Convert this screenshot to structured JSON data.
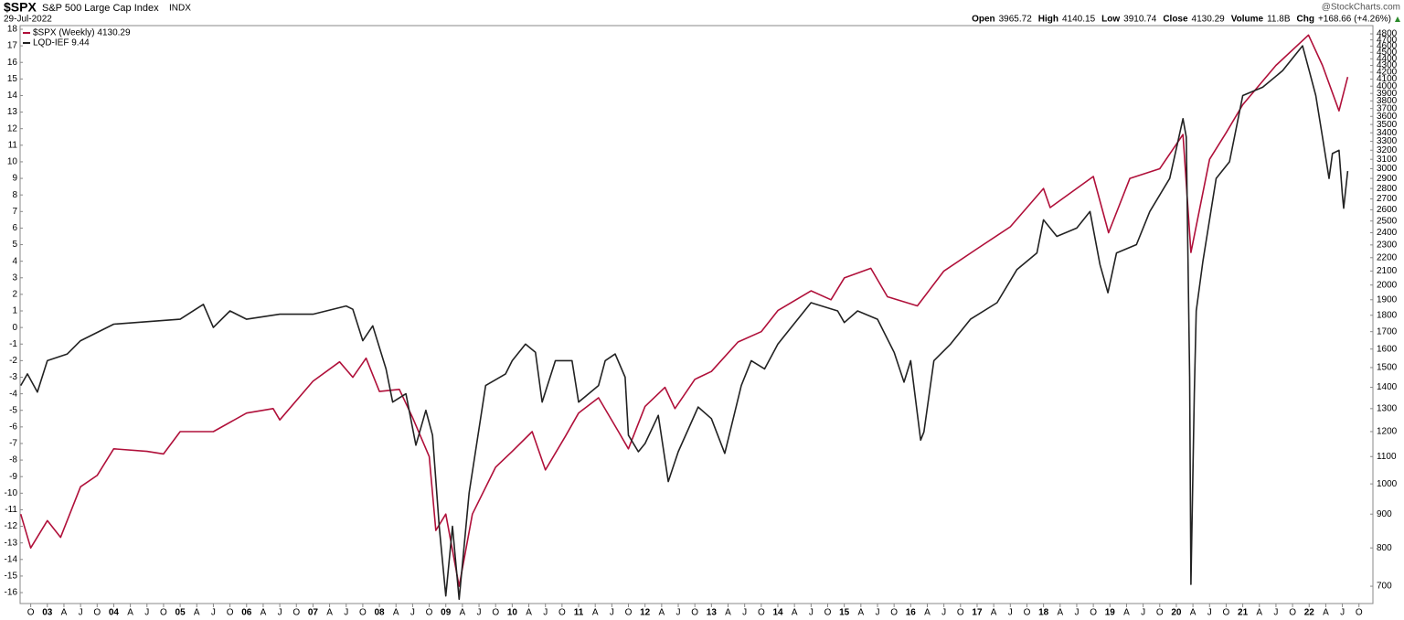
{
  "header": {
    "symbol": "$SPX",
    "name": "S&P 500 Large Cap Index",
    "exchange": "INDX",
    "date": "29-Jul-2022",
    "brand": "@StockCharts.com",
    "stats": [
      {
        "label": "Open",
        "value": "3965.72"
      },
      {
        "label": "High",
        "value": "4140.15"
      },
      {
        "label": "Low",
        "value": "3910.74"
      },
      {
        "label": "Close",
        "value": "4130.29"
      },
      {
        "label": "Volume",
        "value": "11.8B"
      },
      {
        "label": "Chg",
        "value": "+168.66 (+4.26%)"
      }
    ]
  },
  "chart_data": {
    "type": "line",
    "xlim": [
      2002.59,
      2022.96
    ],
    "ylim": [
      -16.66,
      18.22
    ],
    "y2lim": [
      659,
      4940
    ],
    "y2_log": true,
    "yticks": [
      -16,
      -15,
      -14,
      -13,
      -12,
      -11,
      -10,
      -9,
      -8,
      -7,
      -6,
      -5,
      -4,
      -3,
      -2,
      -1,
      0,
      1,
      2,
      3,
      4,
      5,
      6,
      7,
      8,
      9,
      10,
      11,
      12,
      13,
      14,
      15,
      16,
      17,
      18
    ],
    "y2ticks": [
      700,
      800,
      900,
      1000,
      1100,
      1200,
      1300,
      1400,
      1500,
      1600,
      1700,
      1800,
      1900,
      2000,
      2100,
      2200,
      2300,
      2400,
      2500,
      2600,
      2700,
      2800,
      2900,
      3000,
      3100,
      3200,
      3300,
      3400,
      3500,
      3600,
      3700,
      3800,
      3900,
      4000,
      4100,
      4200,
      4300,
      4400,
      4500,
      4600,
      4700,
      4800
    ],
    "xticks": [
      {
        "value": 2002.75,
        "label": "O"
      },
      {
        "value": 2003,
        "label": "03"
      },
      {
        "value": 2003.25,
        "label": "A"
      },
      {
        "value": 2003.5,
        "label": "J"
      },
      {
        "value": 2003.75,
        "label": "O"
      },
      {
        "value": 2004,
        "label": "04"
      },
      {
        "value": 2004.25,
        "label": "A"
      },
      {
        "value": 2004.5,
        "label": "J"
      },
      {
        "value": 2004.75,
        "label": "O"
      },
      {
        "value": 2005,
        "label": "05"
      },
      {
        "value": 2005.25,
        "label": "A"
      },
      {
        "value": 2005.5,
        "label": "J"
      },
      {
        "value": 2005.75,
        "label": "O"
      },
      {
        "value": 2006,
        "label": "06"
      },
      {
        "value": 2006.25,
        "label": "A"
      },
      {
        "value": 2006.5,
        "label": "J"
      },
      {
        "value": 2006.75,
        "label": "O"
      },
      {
        "value": 2007,
        "label": "07"
      },
      {
        "value": 2007.25,
        "label": "A"
      },
      {
        "value": 2007.5,
        "label": "J"
      },
      {
        "value": 2007.75,
        "label": "O"
      },
      {
        "value": 2008,
        "label": "08"
      },
      {
        "value": 2008.25,
        "label": "A"
      },
      {
        "value": 2008.5,
        "label": "J"
      },
      {
        "value": 2008.75,
        "label": "O"
      },
      {
        "value": 2009,
        "label": "09"
      },
      {
        "value": 2009.25,
        "label": "A"
      },
      {
        "value": 2009.5,
        "label": "J"
      },
      {
        "value": 2009.75,
        "label": "O"
      },
      {
        "value": 2010,
        "label": "10"
      },
      {
        "value": 2010.25,
        "label": "A"
      },
      {
        "value": 2010.5,
        "label": "J"
      },
      {
        "value": 2010.75,
        "label": "O"
      },
      {
        "value": 2011,
        "label": "11"
      },
      {
        "value": 2011.25,
        "label": "A"
      },
      {
        "value": 2011.5,
        "label": "J"
      },
      {
        "value": 2011.75,
        "label": "O"
      },
      {
        "value": 2012,
        "label": "12"
      },
      {
        "value": 2012.25,
        "label": "A"
      },
      {
        "value": 2012.5,
        "label": "J"
      },
      {
        "value": 2012.75,
        "label": "O"
      },
      {
        "value": 2013,
        "label": "13"
      },
      {
        "value": 2013.25,
        "label": "A"
      },
      {
        "value": 2013.5,
        "label": "J"
      },
      {
        "value": 2013.75,
        "label": "O"
      },
      {
        "value": 2014,
        "label": "14"
      },
      {
        "value": 2014.25,
        "label": "A"
      },
      {
        "value": 2014.5,
        "label": "J"
      },
      {
        "value": 2014.75,
        "label": "O"
      },
      {
        "value": 2015,
        "label": "15"
      },
      {
        "value": 2015.25,
        "label": "A"
      },
      {
        "value": 2015.5,
        "label": "J"
      },
      {
        "value": 2015.75,
        "label": "O"
      },
      {
        "value": 2016,
        "label": "16"
      },
      {
        "value": 2016.25,
        "label": "A"
      },
      {
        "value": 2016.5,
        "label": "J"
      },
      {
        "value": 2016.75,
        "label": "O"
      },
      {
        "value": 2017,
        "label": "17"
      },
      {
        "value": 2017.25,
        "label": "A"
      },
      {
        "value": 2017.5,
        "label": "J"
      },
      {
        "value": 2017.75,
        "label": "O"
      },
      {
        "value": 2018,
        "label": "18"
      },
      {
        "value": 2018.25,
        "label": "A"
      },
      {
        "value": 2018.5,
        "label": "J"
      },
      {
        "value": 2018.75,
        "label": "O"
      },
      {
        "value": 2019,
        "label": "19"
      },
      {
        "value": 2019.25,
        "label": "A"
      },
      {
        "value": 2019.5,
        "label": "J"
      },
      {
        "value": 2019.75,
        "label": "O"
      },
      {
        "value": 2020,
        "label": "20"
      },
      {
        "value": 2020.25,
        "label": "A"
      },
      {
        "value": 2020.5,
        "label": "J"
      },
      {
        "value": 2020.75,
        "label": "O"
      },
      {
        "value": 2021,
        "label": "21"
      },
      {
        "value": 2021.25,
        "label": "A"
      },
      {
        "value": 2021.5,
        "label": "J"
      },
      {
        "value": 2021.75,
        "label": "O"
      },
      {
        "value": 2022,
        "label": "22"
      },
      {
        "value": 2022.25,
        "label": "A"
      },
      {
        "value": 2022.5,
        "label": "J"
      },
      {
        "value": 2022.75,
        "label": "O"
      }
    ],
    "series": [
      {
        "name": "$SPX (Weekly) 4130.29",
        "color": "#b0103a",
        "axis": "y2",
        "x": [
          2002.6,
          2002.75,
          2003.0,
          2003.2,
          2003.5,
          2003.75,
          2004.0,
          2004.5,
          2004.75,
          2005.0,
          2005.5,
          2006.0,
          2006.4,
          2006.5,
          2007.0,
          2007.4,
          2007.6,
          2007.8,
          2008.0,
          2008.3,
          2008.5,
          2008.75,
          2008.85,
          2009.0,
          2009.2,
          2009.4,
          2009.75,
          2010.0,
          2010.3,
          2010.5,
          2010.8,
          2011.0,
          2011.3,
          2011.6,
          2011.75,
          2012.0,
          2012.3,
          2012.45,
          2012.75,
          2013.0,
          2013.4,
          2013.75,
          2014.0,
          2014.5,
          2014.8,
          2015.0,
          2015.4,
          2015.65,
          2016.1,
          2016.5,
          2017.0,
          2017.5,
          2018.0,
          2018.1,
          2018.75,
          2018.98,
          2019.3,
          2019.75,
          2020.1,
          2020.22,
          2020.5,
          2020.75,
          2021.0,
          2021.5,
          2021.99,
          2022.2,
          2022.45,
          2022.58
        ],
        "values": [
          900,
          800,
          880,
          830,
          990,
          1030,
          1130,
          1120,
          1110,
          1200,
          1200,
          1280,
          1300,
          1250,
          1430,
          1530,
          1450,
          1550,
          1380,
          1390,
          1260,
          1100,
          850,
          900,
          700,
          900,
          1060,
          1120,
          1200,
          1050,
          1180,
          1280,
          1350,
          1200,
          1130,
          1310,
          1400,
          1300,
          1440,
          1480,
          1640,
          1700,
          1830,
          1960,
          1900,
          2050,
          2120,
          1920,
          1860,
          2100,
          2270,
          2450,
          2800,
          2620,
          2920,
          2400,
          2900,
          3000,
          3380,
          2240,
          3100,
          3400,
          3750,
          4300,
          4780,
          4300,
          3670,
          4130
        ]
      },
      {
        "name": "LQD-IEF 9.44",
        "color": "#222222",
        "axis": "y",
        "x": [
          2002.6,
          2002.7,
          2002.85,
          2003.0,
          2003.3,
          2003.5,
          2004.0,
          2005.0,
          2005.35,
          2005.5,
          2005.75,
          2006.0,
          2006.5,
          2007.0,
          2007.5,
          2007.6,
          2007.75,
          2007.9,
          2008.1,
          2008.2,
          2008.4,
          2008.55,
          2008.7,
          2008.8,
          2008.9,
          2009.0,
          2009.1,
          2009.2,
          2009.35,
          2009.6,
          2009.9,
          2010.0,
          2010.2,
          2010.35,
          2010.45,
          2010.65,
          2010.9,
          2011.0,
          2011.3,
          2011.4,
          2011.55,
          2011.7,
          2011.75,
          2011.9,
          2012.0,
          2012.2,
          2012.35,
          2012.5,
          2012.8,
          2013.0,
          2013.2,
          2013.45,
          2013.6,
          2013.8,
          2014.0,
          2014.2,
          2014.5,
          2014.9,
          2015.0,
          2015.2,
          2015.5,
          2015.75,
          2015.9,
          2016.0,
          2016.15,
          2016.2,
          2016.35,
          2016.6,
          2016.9,
          2017.3,
          2017.6,
          2017.9,
          2018.0,
          2018.2,
          2018.5,
          2018.7,
          2018.85,
          2018.97,
          2019.1,
          2019.4,
          2019.6,
          2019.9,
          2020.1,
          2020.15,
          2020.2,
          2020.22,
          2020.27,
          2020.3,
          2020.4,
          2020.6,
          2020.8,
          2021.0,
          2021.3,
          2021.6,
          2021.9,
          2022.0,
          2022.1,
          2022.2,
          2022.3,
          2022.35,
          2022.45,
          2022.5,
          2022.52,
          2022.58
        ],
        "values": [
          -3.5,
          -2.8,
          -3.9,
          -2.0,
          -1.6,
          -0.8,
          0.2,
          0.5,
          1.4,
          0,
          1.0,
          0.5,
          0.8,
          0.8,
          1.3,
          1.1,
          -0.8,
          0.1,
          -2.5,
          -4.5,
          -4.0,
          -7.1,
          -5.0,
          -6.5,
          -12,
          -16.2,
          -12,
          -16.4,
          -10,
          -3.5,
          -2.8,
          -2.0,
          -1.0,
          -1.5,
          -4.5,
          -2.0,
          -2.0,
          -4.5,
          -3.5,
          -2.0,
          -1.6,
          -3.0,
          -6.5,
          -7.5,
          -7.0,
          -5.3,
          -9.3,
          -7.5,
          -4.8,
          -5.5,
          -7.6,
          -3.5,
          -2.0,
          -2.5,
          -1.0,
          0,
          1.5,
          1.0,
          0.3,
          1.0,
          0.5,
          -1.5,
          -3.3,
          -2.0,
          -6.8,
          -6.3,
          -2.0,
          -1.0,
          0.5,
          1.5,
          3.5,
          4.5,
          6.5,
          5.5,
          6.0,
          7.0,
          3.8,
          2.1,
          4.5,
          5.0,
          7.0,
          9.0,
          12.6,
          11.5,
          -3,
          -15.5,
          -4,
          1.0,
          4.0,
          9.0,
          10.0,
          14.0,
          14.5,
          15.5,
          17.0,
          15.5,
          14.0,
          11.5,
          9.0,
          10.5,
          10.7,
          8.0,
          7.2,
          9.44
        ]
      }
    ]
  }
}
